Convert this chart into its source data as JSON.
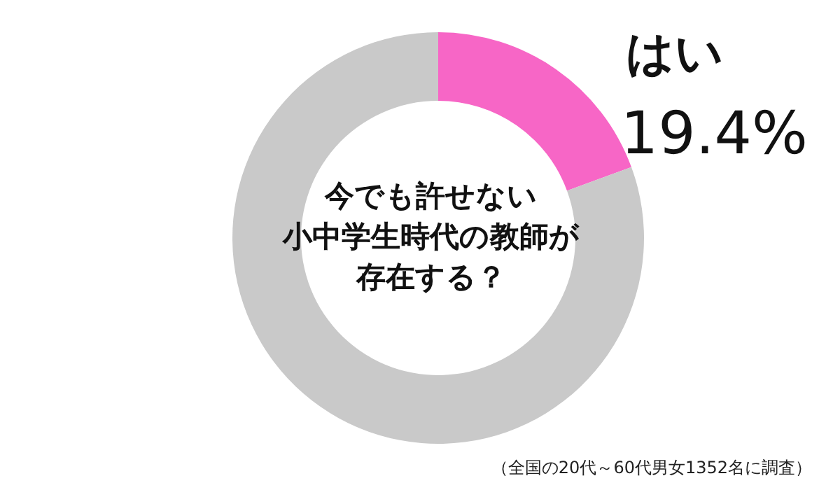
{
  "chart_data": {
    "type": "donut",
    "title": "今でも許せない小中学生時代の教師が存在する？",
    "categories": [
      "はい",
      null
    ],
    "values": [
      19.4,
      80.6
    ],
    "colors": [
      "#f766c6",
      "#c9c9c9"
    ],
    "value_labels": [
      "19.4%",
      null
    ],
    "annotations": [
      "（全国の20代～60代男女1352名に調査）"
    ]
  }
}
